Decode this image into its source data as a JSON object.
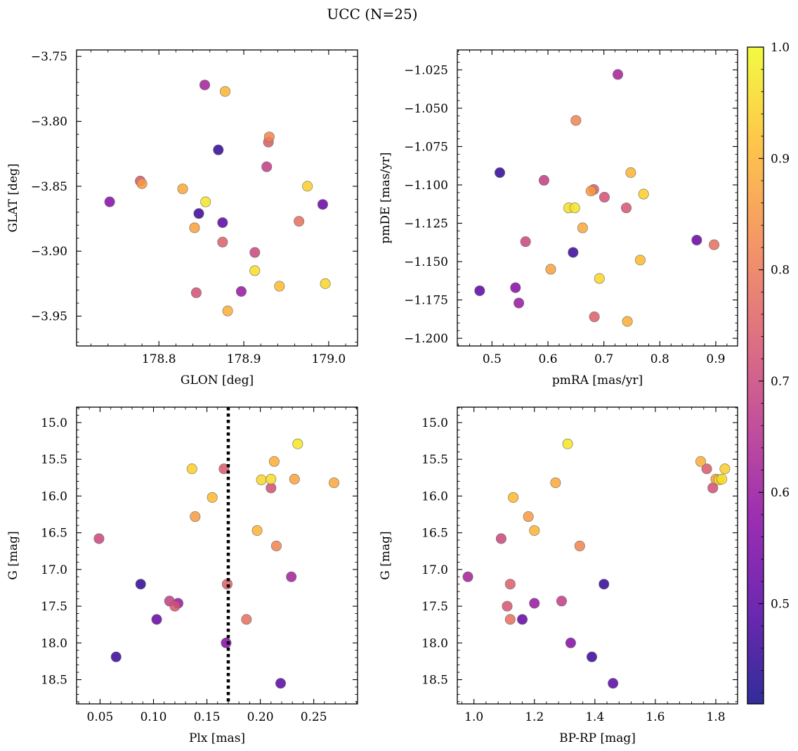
{
  "chart_data": {
    "type": "scatter",
    "title": "UCC (N=25)",
    "colorbar": {
      "range": [
        0.41,
        1.0
      ],
      "ticks": [
        "0.5",
        "0.6",
        "0.7",
        "0.8",
        "0.9",
        "1.0"
      ],
      "tick_values": [
        0.5,
        0.6,
        0.7,
        0.8,
        0.9,
        1.0
      ],
      "colormap": [
        "#0d0887",
        "#5402a3",
        "#8b0aa5",
        "#b93289",
        "#db5c68",
        "#f48849",
        "#febd2a",
        "#f0f921"
      ]
    },
    "points": [
      {
        "glon": 178.854,
        "glat": -3.772,
        "pmra": 0.725,
        "pmde": -1.028,
        "plx": 0.229,
        "g": 17.1,
        "bprp": 0.98,
        "p": 0.62
      },
      {
        "glon": 178.878,
        "glat": -3.777,
        "pmra": 0.748,
        "pmde": -1.092,
        "plx": 0.197,
        "g": 16.47,
        "bprp": 1.2,
        "p": 0.9
      },
      {
        "glon": 178.93,
        "glat": -3.812,
        "pmra": 0.65,
        "pmde": -1.058,
        "plx": 0.215,
        "g": 16.68,
        "bprp": 1.35,
        "p": 0.82
      },
      {
        "glon": 178.929,
        "glat": -3.816,
        "pmra": 0.682,
        "pmde": -1.103,
        "plx": 0.166,
        "g": 15.63,
        "bprp": 1.77,
        "p": 0.74
      },
      {
        "glon": 178.87,
        "glat": -3.822,
        "pmra": 0.514,
        "pmde": -1.092,
        "plx": 0.088,
        "g": 17.2,
        "bprp": 1.43,
        "p": 0.45
      },
      {
        "glon": 178.927,
        "glat": -3.835,
        "pmra": 0.593,
        "pmde": -1.097,
        "plx": 0.115,
        "g": 17.43,
        "bprp": 1.29,
        "p": 0.68
      },
      {
        "glon": 178.778,
        "glat": -3.846,
        "pmra": 0.74,
        "pmde": -1.115,
        "plx": 0.12,
        "g": 17.5,
        "bprp": 1.11,
        "p": 0.73
      },
      {
        "glon": 178.78,
        "glat": -3.848,
        "pmra": 0.677,
        "pmde": -1.104,
        "plx": 0.139,
        "g": 16.28,
        "bprp": 1.18,
        "p": 0.86
      },
      {
        "glon": 178.828,
        "glat": -3.852,
        "pmra": 0.662,
        "pmde": -1.128,
        "plx": 0.269,
        "g": 15.82,
        "bprp": 1.27,
        "p": 0.88
      },
      {
        "glon": 178.975,
        "glat": -3.85,
        "pmra": 0.771,
        "pmde": -1.106,
        "plx": 0.136,
        "g": 15.63,
        "bprp": 1.83,
        "p": 0.94
      },
      {
        "glon": 178.742,
        "glat": -3.862,
        "pmra": 0.542,
        "pmde": -1.167,
        "plx": 0.168,
        "g": 18.0,
        "bprp": 1.32,
        "p": 0.57
      },
      {
        "glon": 178.855,
        "glat": -3.862,
        "pmra": 0.648,
        "pmde": -1.115,
        "plx": 0.235,
        "g": 15.29,
        "bprp": 1.31,
        "p": 0.97
      },
      {
        "glon": 178.847,
        "glat": -3.871,
        "pmra": 0.645,
        "pmde": -1.144,
        "plx": 0.065,
        "g": 18.19,
        "bprp": 1.39,
        "p": 0.46
      },
      {
        "glon": 178.993,
        "glat": -3.864,
        "pmra": 0.866,
        "pmde": -1.136,
        "plx": 0.103,
        "g": 17.68,
        "bprp": 1.16,
        "p": 0.52
      },
      {
        "glon": 178.875,
        "glat": -3.878,
        "pmra": 0.478,
        "pmde": -1.169,
        "plx": 0.219,
        "g": 18.55,
        "bprp": 1.46,
        "p": 0.5
      },
      {
        "glon": 178.965,
        "glat": -3.877,
        "pmra": 0.897,
        "pmde": -1.139,
        "plx": 0.187,
        "g": 17.68,
        "bprp": 1.12,
        "p": 0.78
      },
      {
        "glon": 178.842,
        "glat": -3.882,
        "pmra": 0.605,
        "pmde": -1.155,
        "plx": 0.232,
        "g": 15.77,
        "bprp": 1.8,
        "p": 0.87
      },
      {
        "glon": 178.875,
        "glat": -3.893,
        "pmra": 0.683,
        "pmde": -1.186,
        "plx": 0.169,
        "g": 17.2,
        "bprp": 1.12,
        "p": 0.75
      },
      {
        "glon": 178.913,
        "glat": -3.901,
        "pmra": 0.56,
        "pmde": -1.137,
        "plx": 0.049,
        "g": 16.58,
        "bprp": 1.09,
        "p": 0.7
      },
      {
        "glon": 178.913,
        "glat": -3.915,
        "pmra": 0.637,
        "pmde": -1.115,
        "plx": 0.21,
        "g": 15.77,
        "bprp": 1.82,
        "p": 0.96
      },
      {
        "glon": 178.942,
        "glat": -3.927,
        "pmra": 0.765,
        "pmde": -1.149,
        "plx": 0.155,
        "g": 16.02,
        "bprp": 1.13,
        "p": 0.91
      },
      {
        "glon": 178.996,
        "glat": -3.925,
        "pmra": 0.692,
        "pmde": -1.161,
        "plx": 0.201,
        "g": 15.78,
        "bprp": 1.81,
        "p": 0.95
      },
      {
        "glon": 178.844,
        "glat": -3.932,
        "pmra": 0.701,
        "pmde": -1.108,
        "plx": 0.21,
        "g": 15.89,
        "bprp": 1.79,
        "p": 0.72
      },
      {
        "glon": 178.897,
        "glat": -3.931,
        "pmra": 0.548,
        "pmde": -1.177,
        "plx": 0.123,
        "g": 17.46,
        "bprp": 1.2,
        "p": 0.6
      },
      {
        "glon": 178.881,
        "glat": -3.946,
        "pmra": 0.742,
        "pmde": -1.189,
        "plx": 0.213,
        "g": 15.53,
        "bprp": 1.75,
        "p": 0.89
      }
    ],
    "panels": [
      {
        "xkey": "glon",
        "ykey": "glat",
        "xlabel": "GLON [deg]",
        "ylabel": "GLAT [deg]",
        "xlim": [
          178.703,
          179.034
        ],
        "ylim": [
          -3.973,
          -3.745
        ],
        "invert_y": false,
        "xticks": [
          178.8,
          178.9,
          179.0
        ],
        "xtick_labels": [
          "178.8",
          "178.9",
          "179.0"
        ],
        "yticks": [
          -3.75,
          -3.8,
          -3.85,
          -3.9,
          -3.95
        ],
        "ytick_labels": [
          "−3.75",
          "−3.80",
          "−3.85",
          "−3.90",
          "−3.95"
        ]
      },
      {
        "xkey": "pmra",
        "ykey": "pmde",
        "xlabel": "pmRA [mas/yr]",
        "ylabel": "pmDE [mas/yr]",
        "xlim": [
          0.438,
          0.939
        ],
        "ylim": [
          -1.205,
          -1.012
        ],
        "invert_y": false,
        "xticks": [
          0.5,
          0.6,
          0.7,
          0.8,
          0.9
        ],
        "xtick_labels": [
          "0.5",
          "0.6",
          "0.7",
          "0.8",
          "0.9"
        ],
        "yticks": [
          -1.025,
          -1.05,
          -1.075,
          -1.1,
          -1.125,
          -1.15,
          -1.175,
          -1.2
        ],
        "ytick_labels": [
          "−1.025",
          "−1.050",
          "−1.075",
          "−1.100",
          "−1.125",
          "−1.150",
          "−1.175",
          "−1.200"
        ]
      },
      {
        "xkey": "plx",
        "ykey": "g",
        "xlabel": "Plx [mas]",
        "ylabel": "G [mag]",
        "xlim": [
          0.028,
          0.291
        ],
        "ylim": [
          18.83,
          14.79
        ],
        "invert_y": true,
        "xticks": [
          0.05,
          0.1,
          0.15,
          0.2,
          0.25
        ],
        "xtick_labels": [
          "0.05",
          "0.10",
          "0.15",
          "0.20",
          "0.25"
        ],
        "yticks": [
          15.0,
          15.5,
          16.0,
          16.5,
          17.0,
          17.5,
          18.0,
          18.5
        ],
        "ytick_labels": [
          "15.0",
          "15.5",
          "16.0",
          "16.5",
          "17.0",
          "17.5",
          "18.0",
          "18.5"
        ],
        "vline": 0.17
      },
      {
        "xkey": "bprp",
        "ykey": "g",
        "xlabel": "BP-RP [mag]",
        "ylabel": "G [mag]",
        "xlim": [
          0.945,
          1.872
        ],
        "ylim": [
          18.83,
          14.79
        ],
        "invert_y": true,
        "xticks": [
          1.0,
          1.2,
          1.4,
          1.6,
          1.8
        ],
        "xtick_labels": [
          "1.0",
          "1.2",
          "1.4",
          "1.6",
          "1.8"
        ],
        "yticks": [
          15.0,
          15.5,
          16.0,
          16.5,
          17.0,
          17.5,
          18.0,
          18.5
        ],
        "ytick_labels": [
          "15.0",
          "15.5",
          "16.0",
          "16.5",
          "17.0",
          "17.5",
          "18.0",
          "18.5"
        ]
      }
    ]
  }
}
